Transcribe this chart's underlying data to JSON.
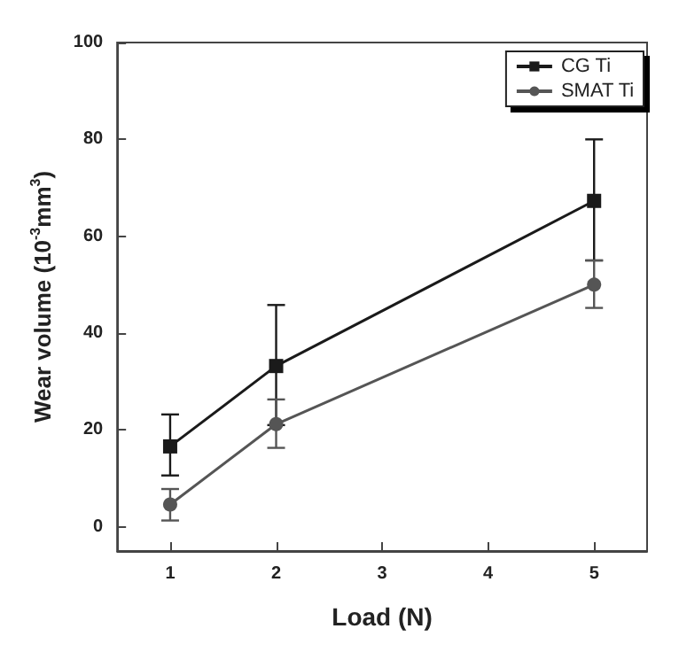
{
  "chart_data": {
    "type": "line",
    "xlabel": "Load (N)",
    "ylabel": "Wear volume (10$^{-3}$mm$^{3}$)",
    "x": [
      1,
      2,
      5
    ],
    "series": [
      {
        "name": "CG Ti",
        "color": "#1a1a1a",
        "marker": "square",
        "values": [
          16.6,
          33.2,
          67.3
        ],
        "errors": [
          [
            10.6,
            23.2
          ],
          [
            21,
            45.8
          ],
          [
            55,
            80
          ]
        ]
      },
      {
        "name": "SMAT Ti",
        "color": "#555555",
        "marker": "circle",
        "values": [
          4.6,
          21.2,
          50
        ],
        "errors": [
          [
            1.3,
            7.8
          ],
          [
            16.3,
            26.3
          ],
          [
            45.2,
            55
          ]
        ]
      }
    ],
    "xlim": [
      0.5,
      5.5
    ],
    "xticks": [
      1,
      2,
      3,
      4,
      5
    ],
    "ylim": [
      -5,
      100
    ],
    "yticks": [
      0,
      20,
      40,
      60,
      80,
      100
    ],
    "grid": false,
    "legend": "top right"
  }
}
